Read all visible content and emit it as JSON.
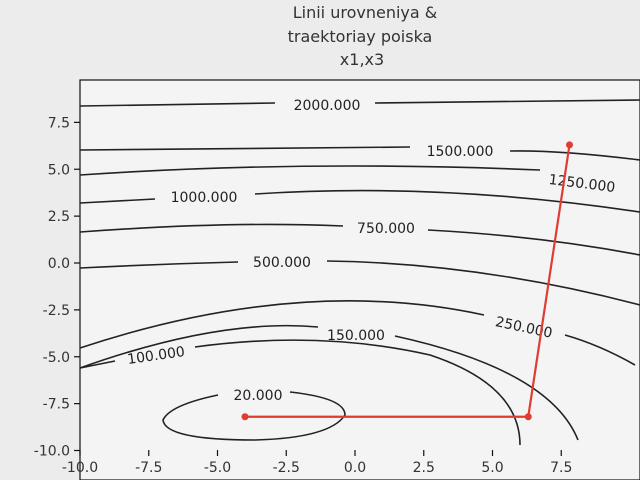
{
  "chart_data": {
    "type": "contour",
    "title_lines": [
      "Linii urovneniya &",
      "traektoriay poiska",
      "x1,x3"
    ],
    "xlabel": "",
    "ylabel": "",
    "xlim": [
      -10.0,
      10.0
    ],
    "ylim": [
      -10.0,
      9.5
    ],
    "x_ticks": [
      "-10.0",
      "-7.5",
      "-5.0",
      "-2.5",
      "0.0",
      "2.5",
      "5.0",
      "7.5"
    ],
    "x_tick_values": [
      -10.0,
      -7.5,
      -5.0,
      -2.5,
      0.0,
      2.5,
      5.0,
      7.5
    ],
    "y_ticks": [
      "-10.0",
      "-7.5",
      "-5.0",
      "-2.5",
      "0.0",
      "2.5",
      "5.0",
      "7.5"
    ],
    "y_tick_values": [
      -10.0,
      -7.5,
      -5.0,
      -2.5,
      0.0,
      2.5,
      5.0,
      7.5
    ],
    "grid": false,
    "contour_levels": [
      {
        "label": "2000.000",
        "value": 2000
      },
      {
        "label": "1500.000",
        "value": 1500
      },
      {
        "label": "1250.000",
        "value": 1250
      },
      {
        "label": "1000.000",
        "value": 1000
      },
      {
        "label": "750.000",
        "value": 750
      },
      {
        "label": "500.000",
        "value": 500
      },
      {
        "label": "250.000",
        "value": 250
      },
      {
        "label": "150.000",
        "value": 150
      },
      {
        "label": "100.000",
        "value": 100
      },
      {
        "label": "20.000",
        "value": 20
      }
    ],
    "trajectory": {
      "color": "#e03c31",
      "points": [
        {
          "x": -4.0,
          "y": -8.2
        },
        {
          "x": 6.3,
          "y": -8.2
        },
        {
          "x": 7.8,
          "y": 6.3
        }
      ]
    },
    "contour_color": "#222222"
  }
}
